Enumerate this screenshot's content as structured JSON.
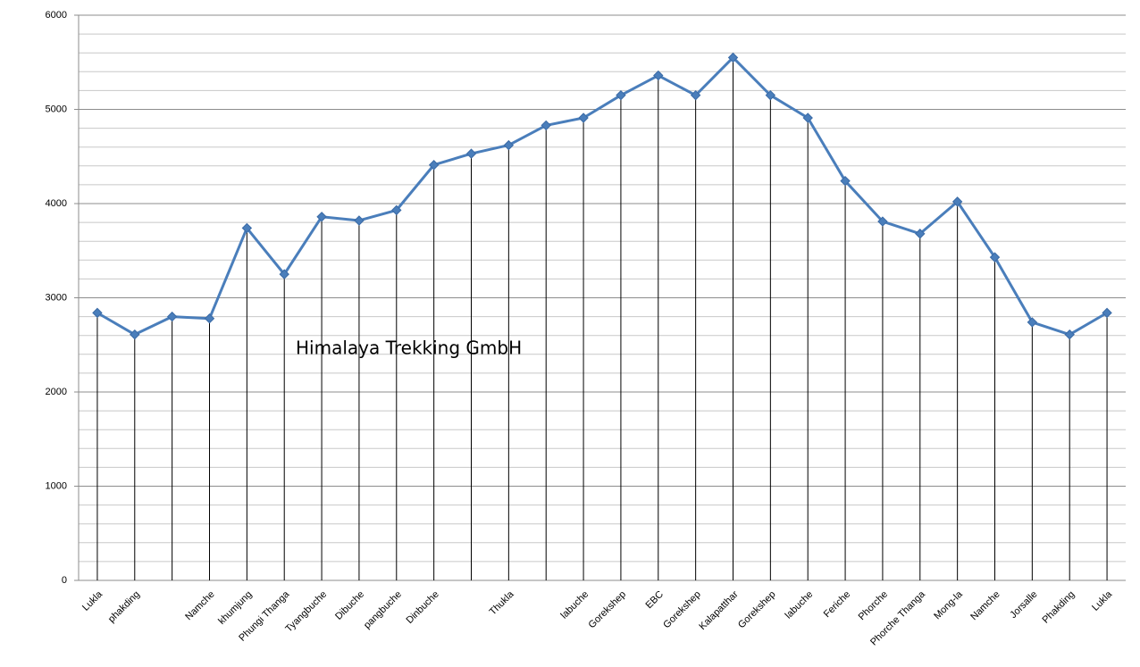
{
  "chart_data": {
    "type": "line",
    "annotation": "Himalaya Trekking GmbH",
    "categories": [
      "Lukla",
      "phakding",
      null,
      "Namche",
      "khumjung",
      "Phungi Thanga",
      "Tyangbuche",
      "Dibuche",
      "pangbuche",
      "Dinbuche",
      null,
      "Thukla",
      null,
      "labuche",
      "Gorekshep",
      "EBC",
      "Gorekshep",
      "Kalapatthar",
      "Gorekshep",
      "labuche",
      "Feriche",
      "Phorche",
      "Phorche Thanga",
      "Mong-la",
      "Namche",
      "Jorsalle",
      "Phakding",
      "Lukla"
    ],
    "values": [
      2840,
      2610,
      2800,
      2780,
      3740,
      3250,
      3860,
      3820,
      3930,
      4410,
      4530,
      4620,
      4830,
      4910,
      5150,
      5360,
      5150,
      5550,
      5150,
      4910,
      4240,
      3810,
      3680,
      4020,
      3430,
      2740,
      2610,
      2840
    ],
    "color": "#4a7ebb",
    "ylim": [
      0,
      6000
    ],
    "yticks": [
      0,
      1000,
      2000,
      3000,
      4000,
      5000,
      6000
    ],
    "minor_yticks": [
      200,
      400,
      600,
      800,
      1200,
      1400,
      1600,
      1800,
      2200,
      2400,
      2600,
      2800,
      3200,
      3400,
      3600,
      3800,
      4200,
      4400,
      4600,
      4800,
      5200,
      5400,
      5600,
      5800
    ],
    "grid": true,
    "drop_lines": true
  }
}
